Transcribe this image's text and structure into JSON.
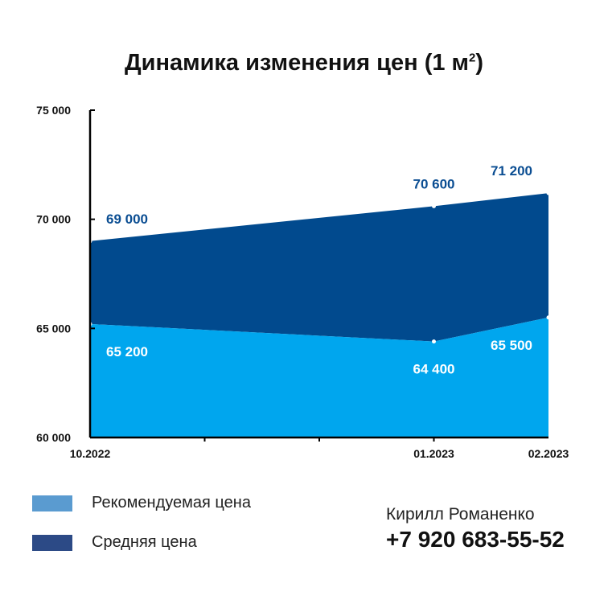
{
  "title": {
    "text": "Динамика изменения цен (1 м",
    "sup": "2",
    "close": ")"
  },
  "chart_data": {
    "type": "area",
    "categories": [
      "10.2022",
      "01.2023",
      "02.2023"
    ],
    "x": [
      0,
      3,
      4
    ],
    "ylim": [
      60000,
      75000
    ],
    "yticks": [
      60000,
      65000,
      70000,
      75000
    ],
    "ytick_labels": [
      "60 000",
      "65 000",
      "70 000",
      "75 000"
    ],
    "series": [
      {
        "name": "Рекомендуемая цена",
        "values": [
          65200,
          64400,
          65500
        ],
        "labels": [
          "65 200",
          "64 400",
          "65 500"
        ],
        "color": "#00A6EE",
        "label_color": "#ffffff"
      },
      {
        "name": "Средняя цена",
        "values": [
          69000,
          70600,
          71200
        ],
        "labels": [
          "69 000",
          "70 600",
          "71 200"
        ],
        "color": "#014A8E",
        "label_color": "#0A4D92"
      }
    ],
    "legend_colors": [
      "#5A9BD0",
      "#2C4A86"
    ],
    "grid": false,
    "legend": "bottom-left"
  },
  "contact": {
    "name": "Кирилл Романенко",
    "phone": "+7 920 683-55-52"
  }
}
